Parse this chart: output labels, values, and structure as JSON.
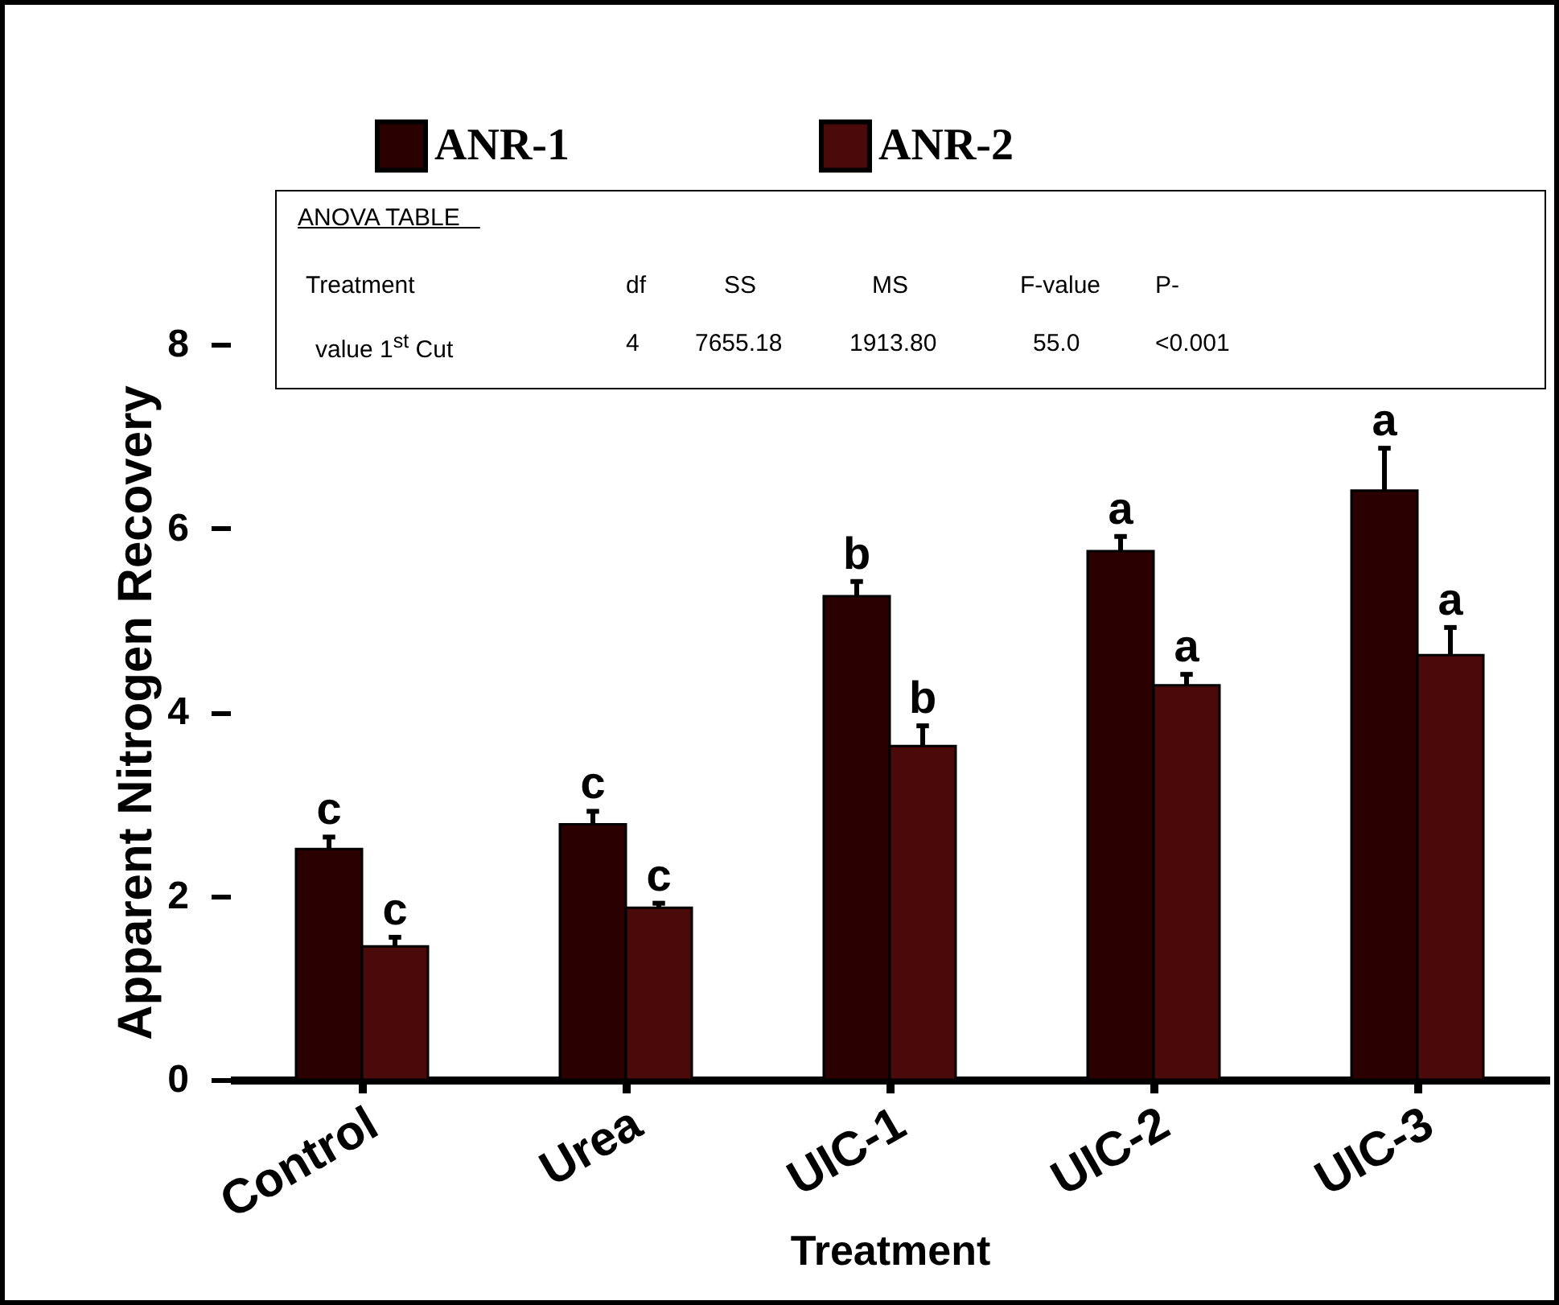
{
  "chart_data": {
    "type": "bar",
    "xlabel": "Treatment",
    "ylabel": "Apparent Nitrogen Recovery",
    "categories": [
      "Control",
      "Urea",
      "UIC-1",
      "UIC-2",
      "UIC-3"
    ],
    "series": [
      {
        "name": "ANR-1",
        "color": "#2a0000",
        "values": [
          2.51,
          2.78,
          5.26,
          5.75,
          6.41
        ],
        "errors": [
          0.13,
          0.14,
          0.16,
          0.16,
          0.46
        ],
        "value_labels": [
          "c",
          "c",
          "b",
          "a",
          "a"
        ]
      },
      {
        "name": "ANR-2",
        "color": "#4a0a0a",
        "values": [
          1.45,
          1.87,
          3.63,
          4.29,
          4.62
        ],
        "errors": [
          0.1,
          0.05,
          0.22,
          0.12,
          0.3
        ],
        "value_labels": [
          "c",
          "c",
          "b",
          "a",
          "a"
        ]
      }
    ],
    "ylim": [
      0,
      8
    ],
    "yticks": [
      0,
      2,
      4,
      6,
      8
    ],
    "legend": "top",
    "annotations": [
      "ANOVA TABLE",
      "Treatment",
      "df",
      "SS",
      "MS",
      "F-value",
      "P-",
      "value 1$^{st}$ Cut",
      "4",
      "7655.18",
      "1913.80",
      "55.0",
      "<0.001"
    ]
  }
}
